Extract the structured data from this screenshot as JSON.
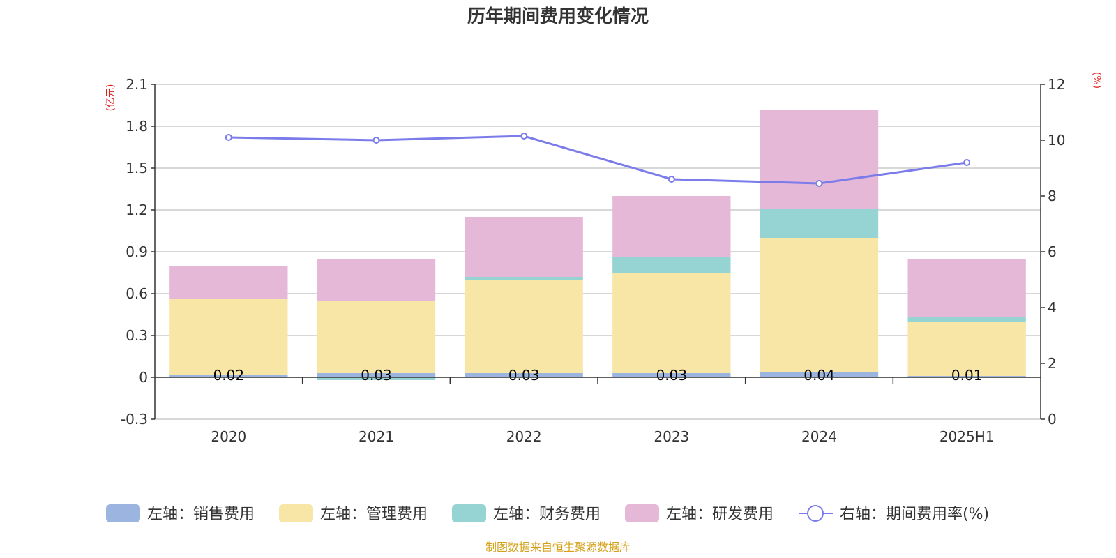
{
  "title": "历年期间费用变化情况",
  "source": "制图数据来自恒生聚源数据库",
  "colors": {
    "sales": "#9bb5e0",
    "admin": "#f7e6a6",
    "finance": "#96d3d3",
    "rnd": "#e6b8d8",
    "rate": "#7b7bea",
    "unit": "#e02020",
    "source": "#d4a017"
  },
  "chart_data": {
    "type": "bar",
    "stacked": true,
    "categories": [
      "2020",
      "2021",
      "2022",
      "2023",
      "2024",
      "2025H1"
    ],
    "y_left": {
      "unit": "(亿元)",
      "ylim": [
        -0.3,
        2.1
      ],
      "ticks": [
        "2.1",
        "1.8",
        "1.5",
        "1.2",
        "0.9",
        "0.6",
        "0.3",
        "0",
        "-0.3"
      ]
    },
    "y_right": {
      "unit": "(%)",
      "ylim": [
        0,
        12
      ],
      "ticks": [
        "12",
        "10",
        "8",
        "6",
        "4",
        "2",
        "0"
      ]
    },
    "grid": true,
    "legend_position": "bottom",
    "series": [
      {
        "name": "左轴：销售费用",
        "axis": "left",
        "values": [
          0.02,
          0.03,
          0.03,
          0.03,
          0.04,
          0.01
        ]
      },
      {
        "name": "左轴：管理费用",
        "axis": "left",
        "values": [
          0.54,
          0.52,
          0.67,
          0.72,
          0.96,
          0.39
        ]
      },
      {
        "name": "左轴：财务费用",
        "axis": "left",
        "values": [
          0.0,
          -0.02,
          0.02,
          0.11,
          0.21,
          0.03
        ]
      },
      {
        "name": "左轴：研发费用",
        "axis": "left",
        "values": [
          0.24,
          0.3,
          0.43,
          0.44,
          0.71,
          0.42
        ]
      },
      {
        "name": "右轴：期间费用率(%)",
        "axis": "right",
        "type": "line",
        "values": [
          10.1,
          10.0,
          10.15,
          8.6,
          8.45,
          9.2
        ]
      }
    ],
    "data_labels": [
      "0.02",
      "0.03",
      "0.03",
      "0.03",
      "0.04",
      "0.01"
    ]
  }
}
